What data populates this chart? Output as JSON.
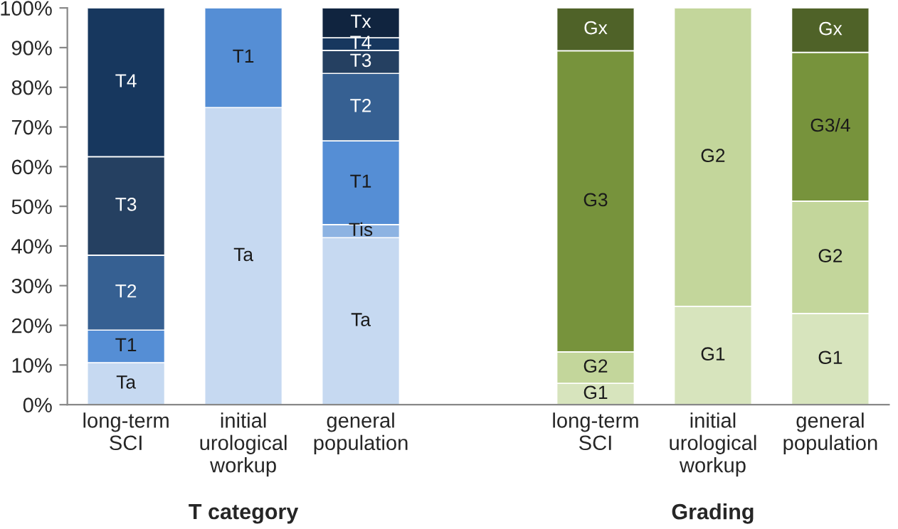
{
  "chart_data": {
    "type": "bar",
    "stacked": true,
    "categories": [
      "long-term\nSCI",
      "initial\nurological\nworkup",
      "general\npopulation",
      null,
      "long-term\nSCI",
      "initial\nurological\nworkup",
      "general\npopulation"
    ],
    "series": [
      {
        "values": [
          10.6,
          74.9,
          42.1,
          null,
          5.4,
          24.8,
          23.0
        ],
        "colors": [
          "#c6d9f1",
          "#c6d9f1",
          "#c6d9f1",
          null,
          "#d7e4bd",
          "#d7e4bd",
          "#d7e4bd"
        ],
        "value_labels": [
          "Ta",
          "Ta",
          "Ta",
          null,
          "G1",
          "G1",
          "G1"
        ]
      },
      {
        "values": [
          8.2,
          25.1,
          3.3,
          null,
          7.9,
          75.2,
          28.3
        ],
        "colors": [
          "#558ed5",
          "#558ed5",
          "#8db3e2",
          null,
          "#c3d69b",
          "#c3d69b",
          "#c3d69b"
        ],
        "value_labels": [
          "T1",
          "T1",
          "Tis",
          null,
          "G2",
          "G2",
          "G2"
        ]
      },
      {
        "values": [
          18.9,
          null,
          21.1,
          null,
          75.9,
          null,
          37.5
        ],
        "colors": [
          "#366092",
          null,
          "#558ed5",
          null,
          "#77933c",
          null,
          "#77933c"
        ],
        "value_labels": [
          "T2",
          null,
          "T1",
          null,
          "G3",
          null,
          "G3/4"
        ]
      },
      {
        "values": [
          24.8,
          null,
          17.0,
          null,
          10.8,
          null,
          11.2
        ],
        "colors": [
          "#254061",
          null,
          "#366092",
          null,
          "#4f6228",
          null,
          "#4f6228"
        ],
        "value_labels": [
          "T3",
          null,
          "T2",
          null,
          "Gx",
          null,
          "Gx"
        ]
      },
      {
        "values": [
          37.5,
          null,
          5.8,
          null,
          null,
          null,
          null
        ],
        "colors": [
          "#17375e",
          null,
          "#254061",
          null,
          null,
          null,
          null
        ],
        "value_labels": [
          "T4",
          null,
          "T3",
          null,
          null,
          null,
          null
        ]
      },
      {
        "values": [
          null,
          null,
          3.2,
          null,
          null,
          null,
          null
        ],
        "colors": [
          null,
          null,
          "#17375e",
          null,
          null,
          null,
          null
        ],
        "value_labels": [
          null,
          null,
          "T4",
          null,
          null,
          null,
          null
        ]
      },
      {
        "values": [
          null,
          null,
          7.5,
          null,
          null,
          null,
          null
        ],
        "colors": [
          null,
          null,
          "#10243f",
          null,
          null,
          null,
          null
        ],
        "value_labels": [
          null,
          null,
          "Tx",
          null,
          null,
          null,
          null
        ]
      }
    ],
    "ylim": [
      0,
      100
    ],
    "yticks": [
      {
        "value": 0,
        "label": "0%"
      },
      {
        "value": 10,
        "label": "10%"
      },
      {
        "value": 20,
        "label": "20%"
      },
      {
        "value": 30,
        "label": "30%"
      },
      {
        "value": 40,
        "label": "40%"
      },
      {
        "value": 50,
        "label": "50%"
      },
      {
        "value": 60,
        "label": "60%"
      },
      {
        "value": 70,
        "label": "70%"
      },
      {
        "value": 80,
        "label": "80%"
      },
      {
        "value": 90,
        "label": "90%"
      },
      {
        "value": 100,
        "label": "100%"
      }
    ],
    "grid": false,
    "legend": false,
    "annotations": [
      "T category",
      "Grading"
    ]
  }
}
